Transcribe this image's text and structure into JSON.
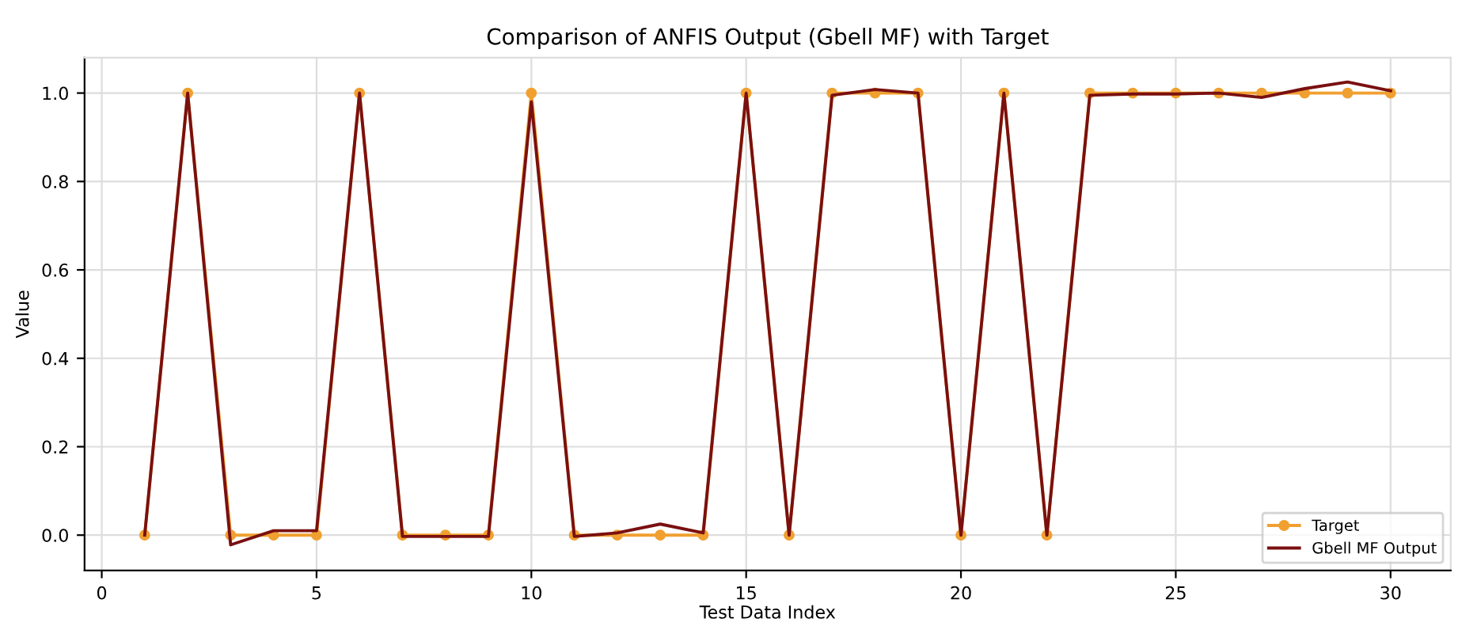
{
  "chart_data": {
    "type": "line",
    "title": "Comparison of ANFIS Output (Gbell MF) with Target",
    "xlabel": "Test Data Index",
    "ylabel": "Value",
    "x": [
      1,
      2,
      3,
      4,
      5,
      6,
      7,
      8,
      9,
      10,
      11,
      12,
      13,
      14,
      15,
      16,
      17,
      18,
      19,
      20,
      21,
      22,
      23,
      24,
      25,
      26,
      27,
      28,
      29,
      30
    ],
    "series": [
      {
        "name": "Target",
        "color": "#f0a030",
        "marker": "circle",
        "values": [
          0,
          1,
          0,
          0,
          0,
          1,
          0,
          0,
          0,
          1,
          0,
          0,
          0,
          0,
          1,
          0,
          1,
          1,
          1,
          0,
          1,
          0,
          1,
          1,
          1,
          1,
          1,
          1,
          1,
          1
        ]
      },
      {
        "name": "Gbell MF Output",
        "color": "#7a1010",
        "marker": "none",
        "values": [
          0,
          1,
          -0.022,
          0.01,
          0.01,
          1,
          -0.003,
          -0.003,
          -0.003,
          0.98,
          -0.003,
          0.005,
          0.025,
          0.005,
          1,
          0,
          0.995,
          1.008,
          1.0,
          0,
          1,
          0,
          0.995,
          0.998,
          0.998,
          1.0,
          0.99,
          1.01,
          1.025,
          1.005
        ]
      }
    ],
    "xlim": [
      -0.4,
      31.4
    ],
    "ylim": [
      -0.08,
      1.08
    ],
    "xticks": [
      0,
      5,
      10,
      15,
      20,
      25,
      30
    ],
    "yticks": [
      {
        "value": 0,
        "label": "0.0"
      },
      {
        "value": 0.2,
        "label": "0.2"
      },
      {
        "value": 0.4,
        "label": "0.4"
      },
      {
        "value": 0.6,
        "label": "0.6"
      },
      {
        "value": 0.8,
        "label": "0.8"
      },
      {
        "value": 1,
        "label": "1.0"
      }
    ],
    "grid": true,
    "legend": "bottom right",
    "line_style": "solid"
  }
}
